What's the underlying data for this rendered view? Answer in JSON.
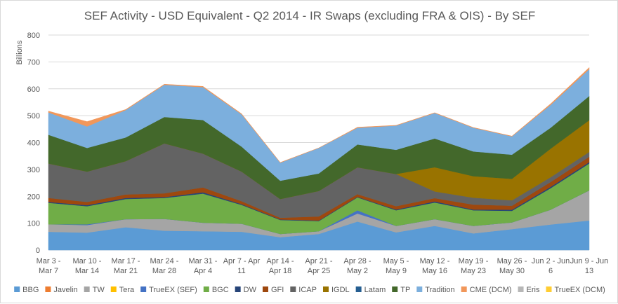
{
  "chart_data": {
    "type": "area",
    "stacked": true,
    "title": "SEF Activity - USD Equivalent - Q2 2014 - IR Swaps (excluding FRA & OIS) - By SEF",
    "xlabel": "",
    "ylabel": "Billions",
    "ylim": [
      0,
      800
    ],
    "yticks": [
      0,
      100,
      200,
      300,
      400,
      500,
      600,
      700,
      800
    ],
    "grid": true,
    "legend_position": "bottom",
    "categories": [
      [
        "Mar 3 -",
        "Mar 7"
      ],
      [
        "Mar 10 -",
        "Mar 14"
      ],
      [
        "Mar 17 -",
        "Mar 21"
      ],
      [
        "Mar 24 -",
        "Mar 28"
      ],
      [
        "Mar 31 -",
        "Apr 4"
      ],
      [
        "Apr 7 - Apr",
        "11"
      ],
      [
        "Apr 14 -",
        "Apr 18"
      ],
      [
        "Apr 21 -",
        "Apr 25"
      ],
      [
        "Apr 28 -",
        "May 2"
      ],
      [
        "May 5 -",
        "May 9"
      ],
      [
        "May 12 -",
        "May 16"
      ],
      [
        "May 19 -",
        "May 23"
      ],
      [
        "May 26 -",
        "May 30"
      ],
      [
        "Jun 2 - Jun",
        "6"
      ],
      [
        "Jun 9 - Jun",
        "13"
      ]
    ],
    "series": [
      {
        "name": "BBG",
        "color": "#5b9bd5",
        "values": [
          68,
          65,
          85,
          72,
          70,
          68,
          48,
          60,
          106,
          66,
          90,
          62,
          78,
          95,
          110
        ]
      },
      {
        "name": "Javelin",
        "color": "#ed7d31",
        "values": [
          0,
          0,
          0,
          0,
          0,
          0,
          0,
          0,
          0,
          0,
          0,
          0,
          0,
          0,
          0
        ]
      },
      {
        "name": "TW",
        "color": "#a5a5a5",
        "values": [
          28,
          28,
          30,
          44,
          32,
          30,
          12,
          10,
          30,
          24,
          25,
          28,
          25,
          55,
          112
        ]
      },
      {
        "name": "Tera",
        "color": "#ffc000",
        "values": [
          0,
          0,
          0,
          0,
          0,
          0,
          0,
          0,
          0,
          0,
          0,
          0,
          0,
          0,
          0
        ]
      },
      {
        "name": "TrueEX (SEF)",
        "color": "#4472c4",
        "values": [
          0,
          3,
          0,
          0,
          0,
          0,
          0,
          0,
          12,
          0,
          0,
          0,
          0,
          0,
          0
        ]
      },
      {
        "name": "BGC",
        "color": "#70ad47",
        "values": [
          80,
          67,
          75,
          78,
          108,
          70,
          52,
          38,
          48,
          58,
          62,
          58,
          43,
          80,
          100
        ]
      },
      {
        "name": "DW",
        "color": "#264478",
        "values": [
          3,
          4,
          4,
          3,
          5,
          3,
          2,
          2,
          2,
          3,
          4,
          3,
          4,
          5,
          5
        ]
      },
      {
        "name": "GFI",
        "color": "#9e480e",
        "values": [
          15,
          12,
          13,
          14,
          18,
          11,
          6,
          15,
          10,
          12,
          12,
          18,
          15,
          18,
          20
        ]
      },
      {
        "name": "ICAP",
        "color": "#636363",
        "values": [
          128,
          113,
          124,
          186,
          126,
          110,
          70,
          95,
          100,
          120,
          25,
          26,
          20,
          18,
          18
        ]
      },
      {
        "name": "IGDL",
        "color": "#997300",
        "values": [
          0,
          0,
          0,
          0,
          0,
          0,
          0,
          0,
          0,
          0,
          90,
          80,
          80,
          106,
          118
        ]
      },
      {
        "name": "Latam",
        "color": "#255e91",
        "values": [
          0,
          0,
          0,
          0,
          0,
          0,
          0,
          0,
          0,
          0,
          0,
          0,
          0,
          0,
          0
        ]
      },
      {
        "name": "TP",
        "color": "#43682b",
        "values": [
          107,
          88,
          88,
          98,
          125,
          93,
          68,
          65,
          85,
          90,
          107,
          92,
          90,
          78,
          90
        ]
      },
      {
        "name": "Tradition",
        "color": "#7cafdd",
        "values": [
          83,
          80,
          102,
          120,
          122,
          120,
          67,
          95,
          62,
          90,
          95,
          88,
          68,
          85,
          100
        ]
      },
      {
        "name": "CME (DCM)",
        "color": "#f1975a",
        "values": [
          5,
          18,
          2,
          2,
          3,
          2,
          1,
          0,
          2,
          1,
          1,
          1,
          1,
          4,
          6
        ]
      },
      {
        "name": "Eris",
        "color": "#b7b7b7",
        "values": [
          0,
          0,
          0,
          0,
          0,
          0,
          0,
          0,
          0,
          0,
          0,
          0,
          0,
          0,
          0
        ]
      },
      {
        "name": "TrueEX (DCM)",
        "color": "#ffcd33",
        "values": [
          0,
          0,
          0,
          0,
          0,
          0,
          0,
          0,
          0,
          0,
          0,
          0,
          0,
          0,
          0
        ]
      }
    ]
  },
  "colors": {
    "grid": "#d9d9d9",
    "axis_text": "#595959",
    "background": "#ffffff"
  }
}
